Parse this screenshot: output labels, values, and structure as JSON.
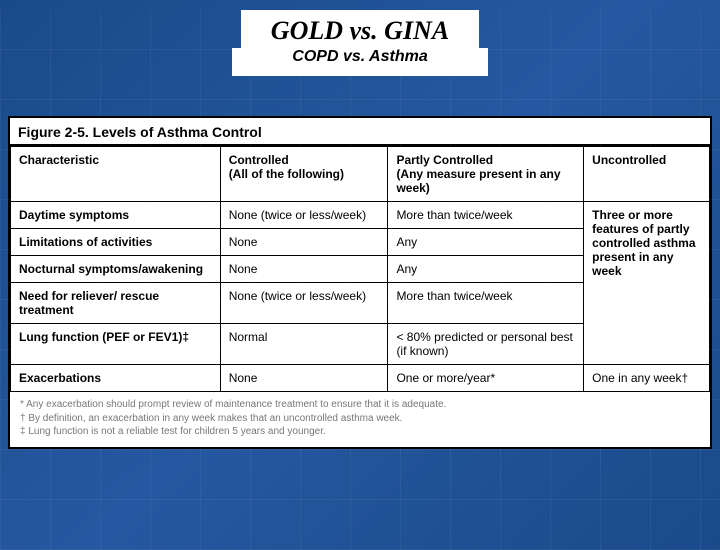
{
  "header": {
    "title": "GOLD  vs.  GINA",
    "subtitle": "COPD vs. Asthma"
  },
  "figure": {
    "caption": "Figure 2-5. Levels of Asthma Control",
    "columns": {
      "characteristic": "Characteristic",
      "controlled": "Controlled",
      "controlled_sub": "(All of the following)",
      "partly": "Partly Controlled",
      "partly_sub": "(Any measure present in any week)",
      "uncontrolled": "Uncontrolled"
    },
    "rows": {
      "daytime": {
        "label": "Daytime symptoms",
        "controlled": "None (twice or less/week)",
        "partly": "More than twice/week"
      },
      "limitations": {
        "label": "Limitations of activities",
        "controlled": "None",
        "partly": "Any"
      },
      "nocturnal": {
        "label": "Nocturnal symptoms/awakening",
        "controlled": "None",
        "partly": "Any"
      },
      "reliever": {
        "label": "Need for reliever/ rescue treatment",
        "controlled": "None (twice or less/week)",
        "partly": "More than twice/week"
      },
      "lung": {
        "label": "Lung function (PEF or FEV1)‡",
        "controlled": "Normal",
        "partly": "< 80% predicted or personal best (if known)"
      },
      "exacerbations": {
        "label": "Exacerbations",
        "controlled": "None",
        "partly": "One or more/year*",
        "uncontrolled": "One in any week†"
      }
    },
    "uncontrolled_span": "Three or more features of partly controlled asthma present in any week",
    "footnotes": {
      "f1": "*  Any exacerbation should prompt review of maintenance treatment to ensure that it is adequate.",
      "f2": "†  By definition, an exacerbation in any week makes that an uncontrolled asthma week.",
      "f3": "‡  Lung function is not a reliable test for children 5 years and younger."
    }
  },
  "style": {
    "bg_gradient_from": "#1a4a8a",
    "bg_gradient_to": "#2558a0",
    "panel_bg": "#ffffff",
    "border_color": "#000000",
    "title_fontsize": 26,
    "subtitle_fontsize": 16,
    "table_fontsize": 12,
    "footnote_fontsize": 10,
    "footnote_color": "#777777"
  }
}
